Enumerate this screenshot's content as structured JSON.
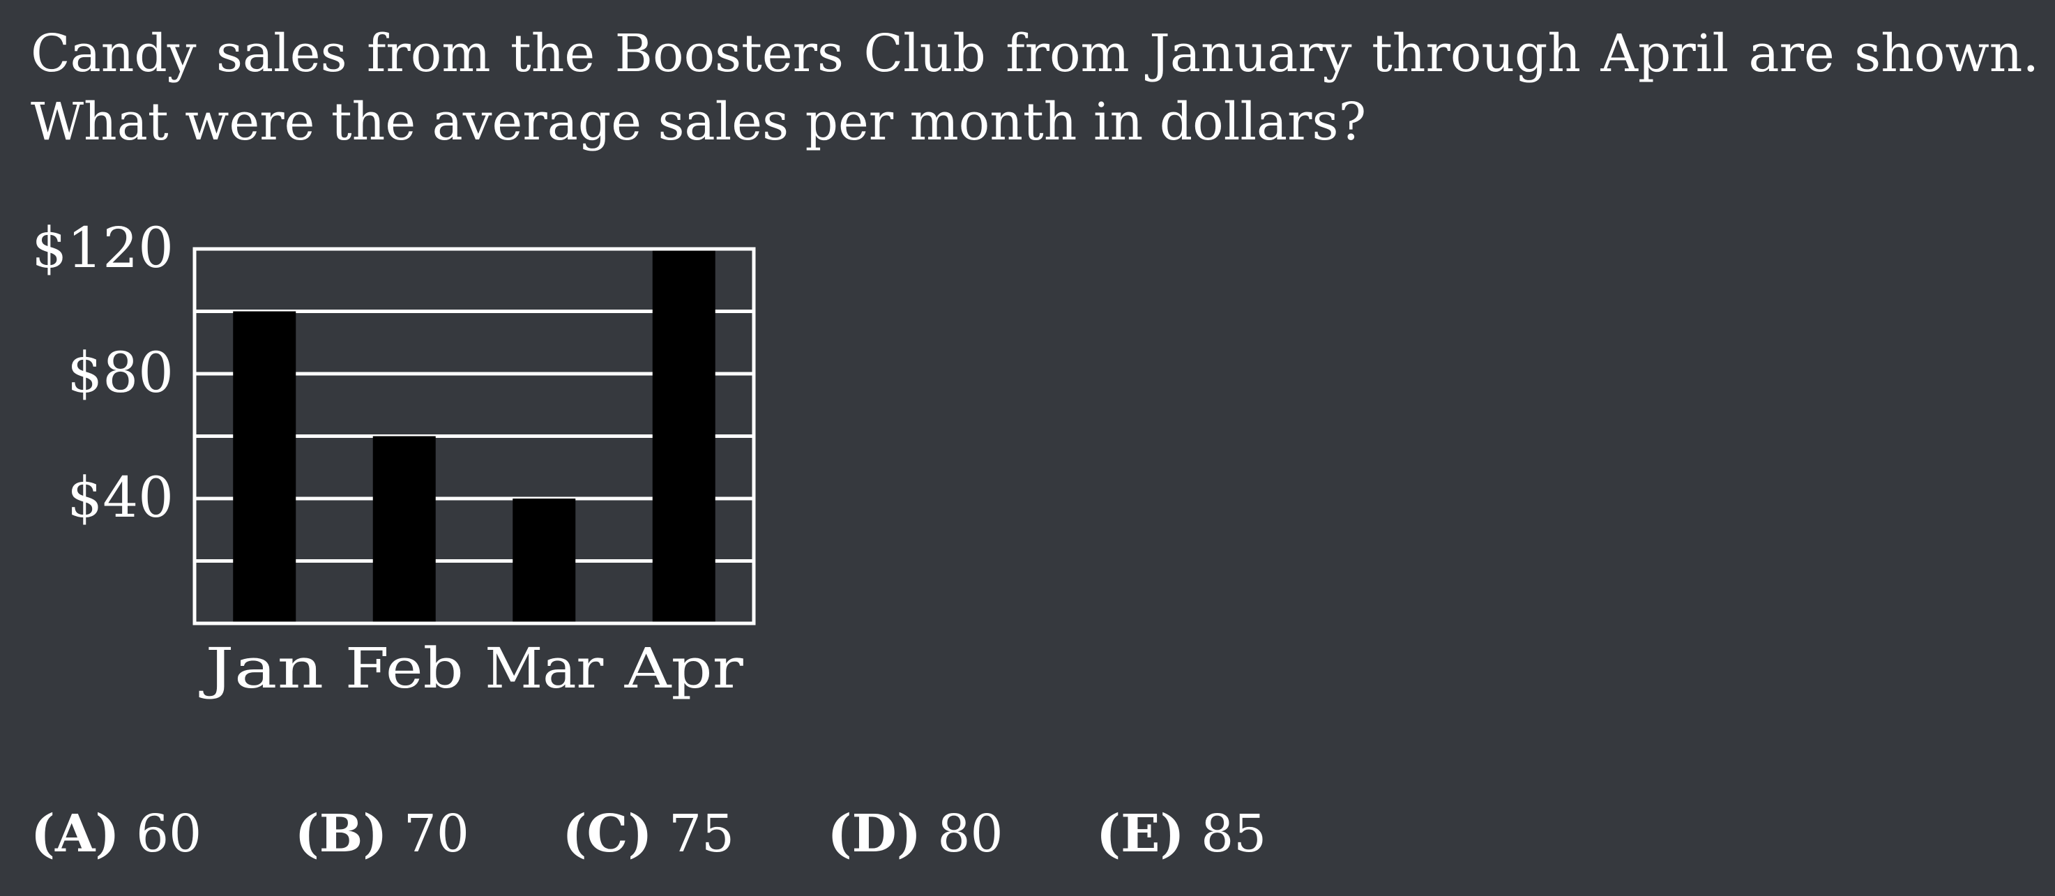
{
  "question": {
    "line1": "Candy sales from the Boosters Club from January through April are shown.",
    "line2": "What were the average sales per month in dollars?"
  },
  "chart_data": {
    "type": "bar",
    "title": "",
    "xlabel": "",
    "ylabel": "",
    "categories": [
      "Jan",
      "Feb",
      "Mar",
      "Apr"
    ],
    "values": [
      100,
      60,
      40,
      120
    ],
    "ylim": [
      0,
      120
    ],
    "gridlines": [
      20,
      40,
      60,
      80,
      100,
      120
    ],
    "y_tick_labels": [
      {
        "value": 40,
        "label": "$40"
      },
      {
        "value": 80,
        "label": "$80"
      },
      {
        "value": 120,
        "label": "$120"
      }
    ],
    "grid": true,
    "colors": {
      "bar": "#000000",
      "grid": "#ffffff",
      "text": "#ffffff"
    }
  },
  "answers": [
    {
      "letter": "(A)",
      "value": "60"
    },
    {
      "letter": "(B)",
      "value": "70"
    },
    {
      "letter": "(C)",
      "value": "75"
    },
    {
      "letter": "(D)",
      "value": "80"
    },
    {
      "letter": "(E)",
      "value": "85"
    }
  ]
}
